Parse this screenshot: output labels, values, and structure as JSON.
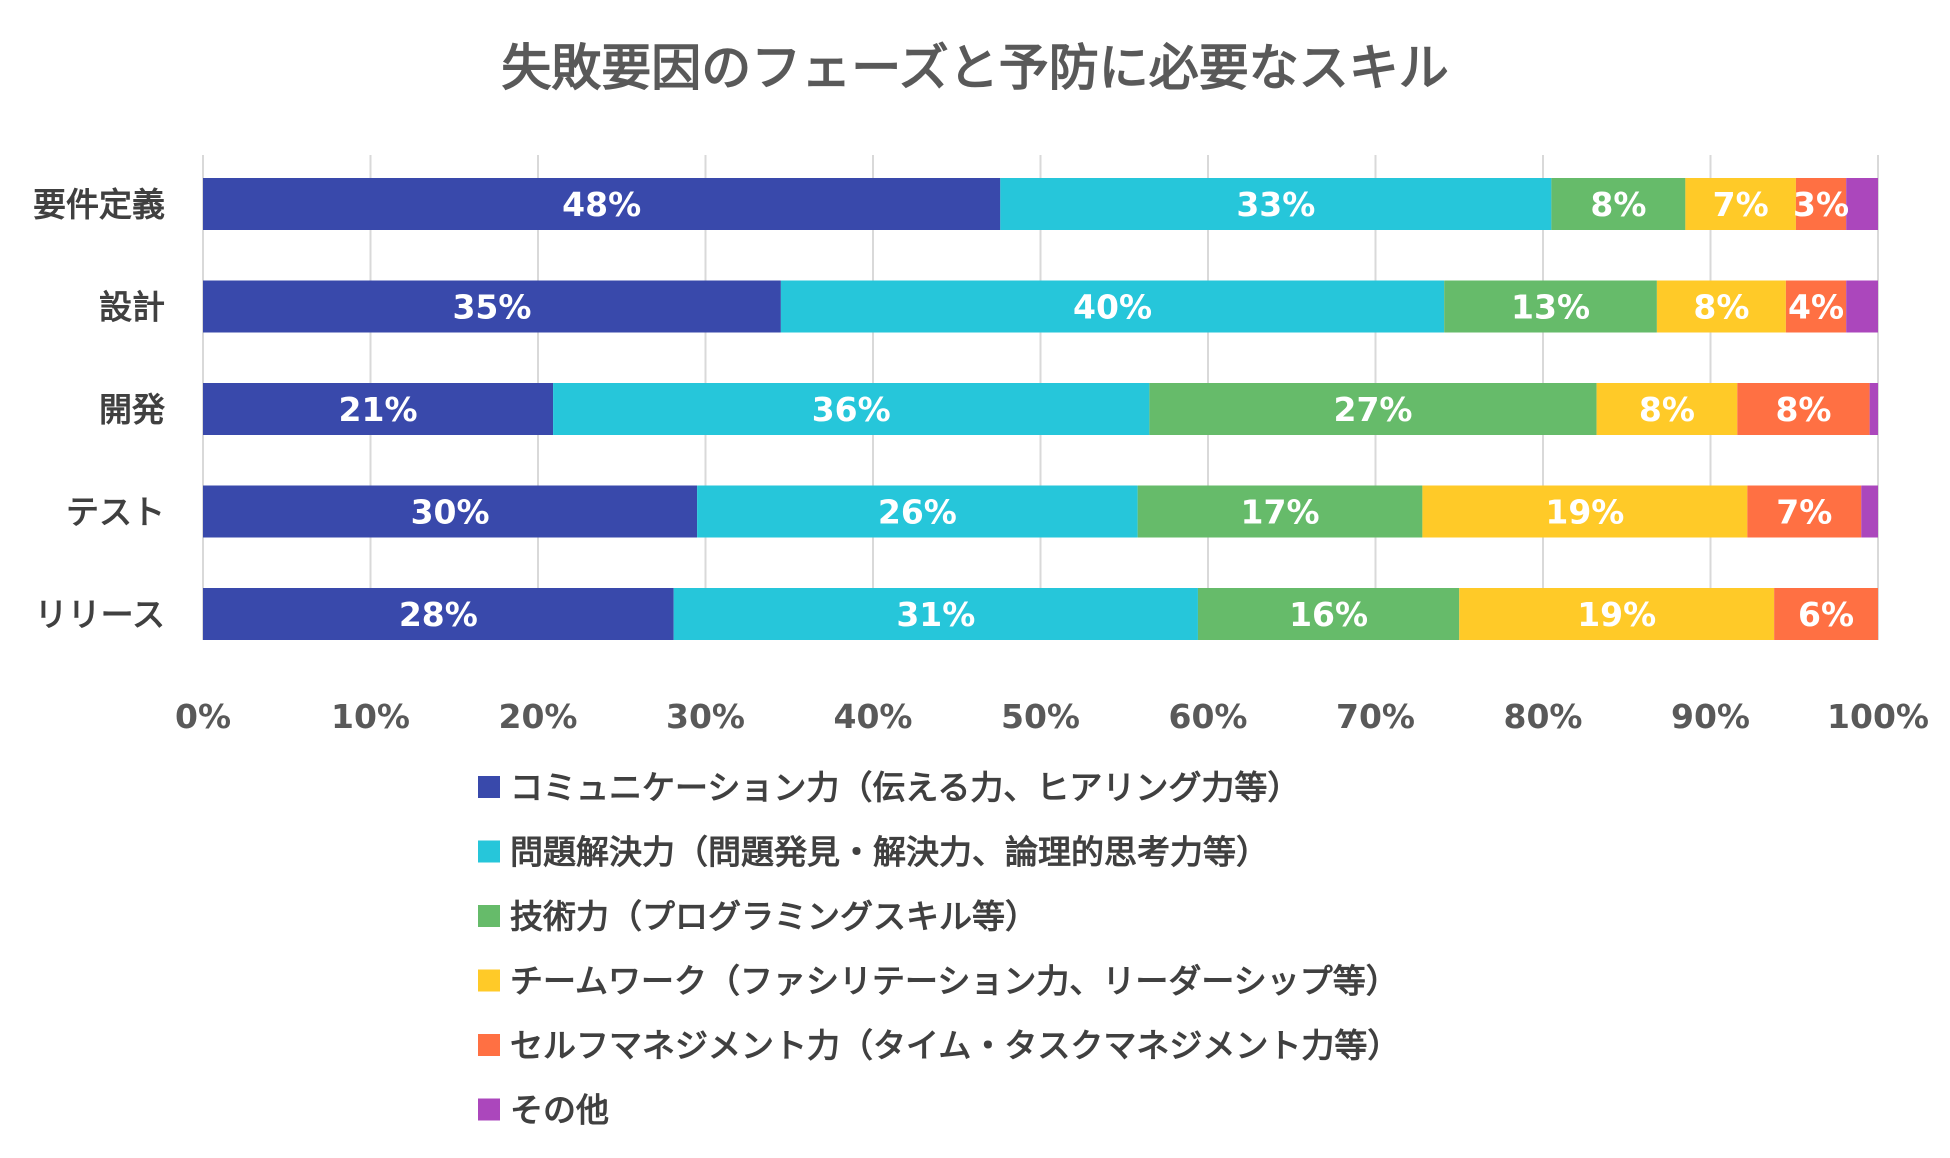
{
  "chart_data": {
    "type": "bar",
    "orientation": "horizontal",
    "stacked": "percent",
    "title": "失敗要因のフェーズと予防に必要なスキル",
    "xlabel": "",
    "ylabel": "",
    "xlim": [
      0,
      100
    ],
    "grid": true,
    "legend_position": "bottom",
    "categories": [
      "要件定義",
      "設計",
      "開発",
      "テスト",
      "リリース"
    ],
    "ticks": [
      "0%",
      "10%",
      "20%",
      "30%",
      "40%",
      "50%",
      "60%",
      "70%",
      "80%",
      "90%",
      "100%"
    ],
    "series": [
      {
        "name": "コミュニケーション力（伝える力、ヒアリング力等）",
        "color": "#3949ab",
        "values": [
          47.6,
          34.5,
          20.9,
          29.5,
          28.1
        ],
        "labels": [
          "48%",
          "35%",
          "21%",
          "30%",
          "28%"
        ]
      },
      {
        "name": "問題解決力（問題発見・解決力、論理的思考力等）",
        "color": "#26c6da",
        "values": [
          32.9,
          39.6,
          35.6,
          26.3,
          31.3
        ],
        "labels": [
          "33%",
          "40%",
          "36%",
          "26%",
          "31%"
        ]
      },
      {
        "name": "技術力（プログラミングスキル等）",
        "color": "#66bb6a",
        "values": [
          8.0,
          12.7,
          26.7,
          17.0,
          15.6
        ],
        "labels": [
          "8%",
          "13%",
          "27%",
          "17%",
          "16%"
        ]
      },
      {
        "name": "チームワーク（ファシリテーション力、リーダーシップ等）",
        "color": "#ffca28",
        "values": [
          6.6,
          7.7,
          8.4,
          19.4,
          18.8
        ],
        "labels": [
          "7%",
          "8%",
          "8%",
          "19%",
          "19%"
        ]
      },
      {
        "name": "セルフマネジメント力（タイム・タスクマネジメント力等）",
        "color": "#ff7043",
        "values": [
          3.0,
          3.6,
          7.9,
          6.8,
          6.2
        ],
        "labels": [
          "3%",
          "4%",
          "8%",
          "7%",
          "6%"
        ]
      },
      {
        "name": "その他",
        "color": "#ab47bc",
        "values": [
          1.9,
          1.9,
          0.5,
          1.0,
          0.0
        ],
        "labels": [
          "",
          "",
          "",
          "",
          ""
        ]
      }
    ]
  }
}
